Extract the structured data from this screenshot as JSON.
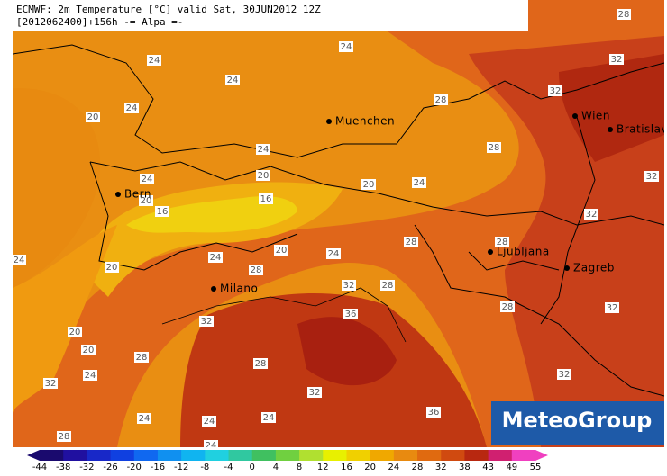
{
  "header": {
    "line1": "ECMWF: 2m Temperature [°C] valid Sat, 30JUN2012 12Z",
    "line2": "[2012062400]+156h -= Alpa =-"
  },
  "cities": [
    "Muenchen",
    "Wien",
    "Bratislava",
    "Bern",
    "Ljubljana",
    "Zagreb",
    "Milano"
  ],
  "contour_labels": [
    28,
    24,
    24,
    24,
    24,
    20,
    28,
    32,
    32,
    28,
    24,
    24,
    20,
    20,
    24,
    32,
    16,
    20,
    16,
    32,
    28,
    28,
    20,
    24,
    24,
    24,
    20,
    28,
    32,
    28,
    28,
    32,
    32,
    36,
    20,
    20,
    28,
    28,
    24,
    32,
    32,
    32,
    36,
    24,
    24,
    24,
    28,
    24
  ],
  "logo": "MeteoGroup",
  "colorbar": {
    "labels": [
      -44,
      -38,
      -32,
      -26,
      -20,
      -16,
      -12,
      -8,
      -4,
      0,
      4,
      8,
      12,
      16,
      20,
      24,
      28,
      32,
      38,
      43,
      49,
      55
    ],
    "colors": [
      "#1a0a6e",
      "#2010a0",
      "#1828c8",
      "#1040e0",
      "#1068f0",
      "#1090f0",
      "#10b4f0",
      "#20d0e0",
      "#30c8a0",
      "#40c060",
      "#70d040",
      "#b0e030",
      "#e8f000",
      "#f0d000",
      "#f0a800",
      "#e88a10",
      "#e06a10",
      "#d04a10",
      "#b82810",
      "#d02070",
      "#f040c0"
    ]
  }
}
